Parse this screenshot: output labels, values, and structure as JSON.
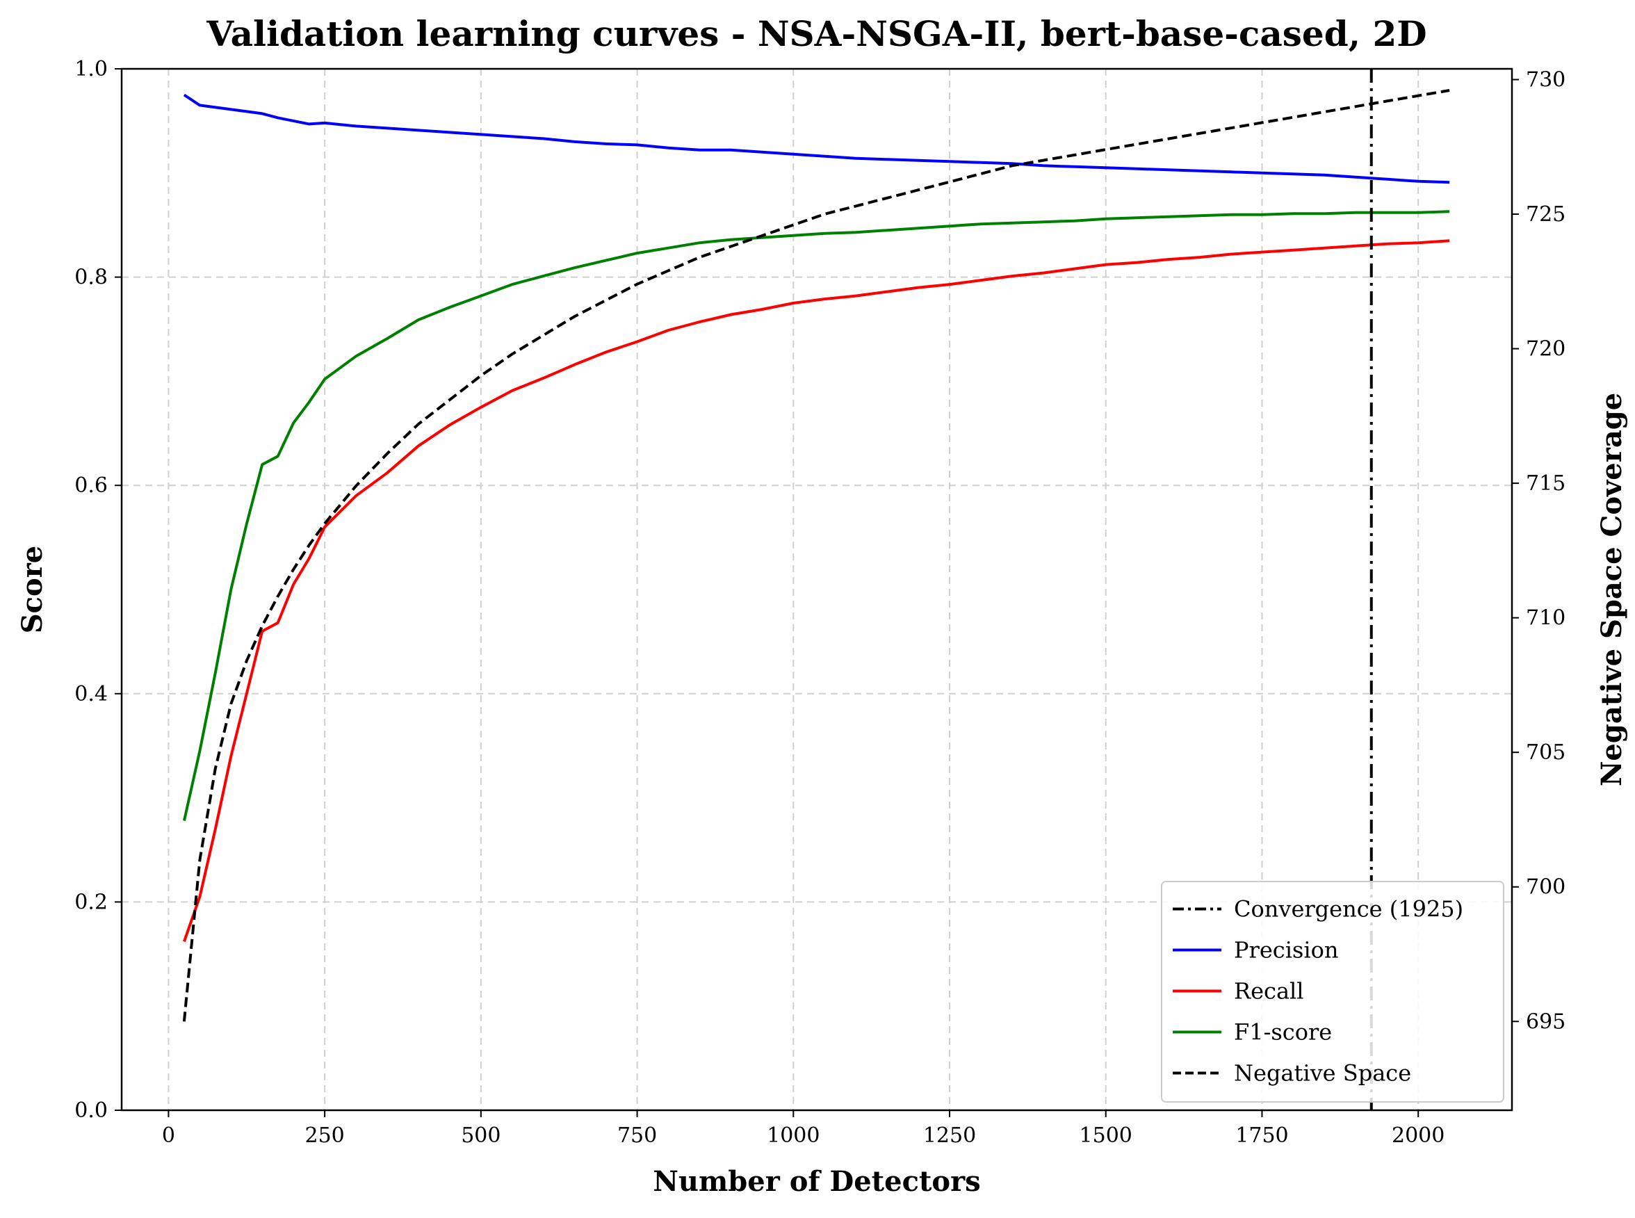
{
  "chart_data": {
    "type": "line",
    "title": "Validation learning curves - NSA-NSGA-II, bert-base-cased, 2D",
    "xlabel": "Number of Detectors",
    "ylabel": "Score",
    "y2label": "Negative Space Coverage",
    "xlim": [
      -75,
      2150
    ],
    "ylim": [
      0.0,
      1.0
    ],
    "y2lim": [
      691.7,
      730.4
    ],
    "grid": true,
    "legend_position": "lower-right",
    "x_ticks": [
      "0",
      "250",
      "500",
      "750",
      "1000",
      "1250",
      "1500",
      "1750",
      "2000"
    ],
    "y_ticks": [
      "0.0",
      "0.2",
      "0.4",
      "0.6",
      "0.8",
      "1.0"
    ],
    "y2_ticks": [
      "695",
      "700",
      "705",
      "710",
      "715",
      "720",
      "725",
      "730"
    ],
    "convergence": {
      "x": 1925,
      "label": "Convergence (1925)"
    },
    "x": [
      25,
      50,
      75,
      100,
      125,
      150,
      175,
      200,
      225,
      250,
      300,
      350,
      400,
      450,
      500,
      550,
      600,
      650,
      700,
      750,
      800,
      850,
      900,
      950,
      1000,
      1050,
      1100,
      1150,
      1200,
      1250,
      1300,
      1350,
      1400,
      1450,
      1500,
      1550,
      1600,
      1650,
      1700,
      1750,
      1800,
      1850,
      1900,
      1950,
      2000,
      2050
    ],
    "series": [
      {
        "name": "Precision",
        "axis": "left",
        "color": "#0000ff",
        "dash": "solid",
        "values": [
          0.975,
          0.965,
          0.963,
          0.961,
          0.959,
          0.957,
          0.953,
          0.95,
          0.947,
          0.948,
          0.945,
          0.943,
          0.941,
          0.939,
          0.937,
          0.935,
          0.933,
          0.93,
          0.928,
          0.927,
          0.924,
          0.922,
          0.922,
          0.92,
          0.918,
          0.916,
          0.914,
          0.913,
          0.912,
          0.911,
          0.91,
          0.909,
          0.907,
          0.906,
          0.905,
          0.904,
          0.903,
          0.902,
          0.901,
          0.9,
          0.899,
          0.898,
          0.896,
          0.894,
          0.892,
          0.891
        ]
      },
      {
        "name": "Recall",
        "axis": "left",
        "color": "#ff0000",
        "dash": "solid",
        "values": [
          0.162,
          0.205,
          0.27,
          0.34,
          0.4,
          0.46,
          0.468,
          0.505,
          0.53,
          0.56,
          0.59,
          0.612,
          0.638,
          0.658,
          0.675,
          0.691,
          0.703,
          0.716,
          0.728,
          0.738,
          0.749,
          0.757,
          0.764,
          0.769,
          0.775,
          0.779,
          0.782,
          0.786,
          0.79,
          0.793,
          0.797,
          0.801,
          0.804,
          0.808,
          0.812,
          0.814,
          0.817,
          0.819,
          0.822,
          0.824,
          0.826,
          0.828,
          0.83,
          0.832,
          0.833,
          0.835
        ]
      },
      {
        "name": "F1-score",
        "axis": "left",
        "color": "#008000",
        "dash": "solid",
        "values": [
          0.278,
          0.345,
          0.42,
          0.5,
          0.563,
          0.62,
          0.628,
          0.66,
          0.68,
          0.702,
          0.724,
          0.741,
          0.759,
          0.771,
          0.782,
          0.793,
          0.801,
          0.809,
          0.816,
          0.823,
          0.828,
          0.833,
          0.836,
          0.838,
          0.84,
          0.842,
          0.843,
          0.845,
          0.847,
          0.849,
          0.851,
          0.852,
          0.853,
          0.854,
          0.856,
          0.857,
          0.858,
          0.859,
          0.86,
          0.86,
          0.861,
          0.861,
          0.862,
          0.862,
          0.862,
          0.863
        ]
      },
      {
        "name": "Negative Space",
        "axis": "right",
        "color": "#000000",
        "dash": "dashed",
        "values": [
          695.0,
          701.0,
          704.4,
          706.8,
          708.4,
          709.7,
          710.8,
          711.8,
          712.7,
          713.5,
          714.9,
          716.1,
          717.2,
          718.1,
          719.0,
          719.8,
          720.5,
          721.2,
          721.8,
          722.4,
          722.9,
          723.4,
          723.8,
          724.2,
          724.6,
          725.0,
          725.3,
          725.6,
          725.9,
          726.2,
          726.5,
          726.8,
          727.0,
          727.2,
          727.4,
          727.6,
          727.8,
          728.0,
          728.2,
          728.4,
          728.6,
          728.8,
          729.0,
          729.2,
          729.4,
          729.6
        ]
      }
    ]
  }
}
